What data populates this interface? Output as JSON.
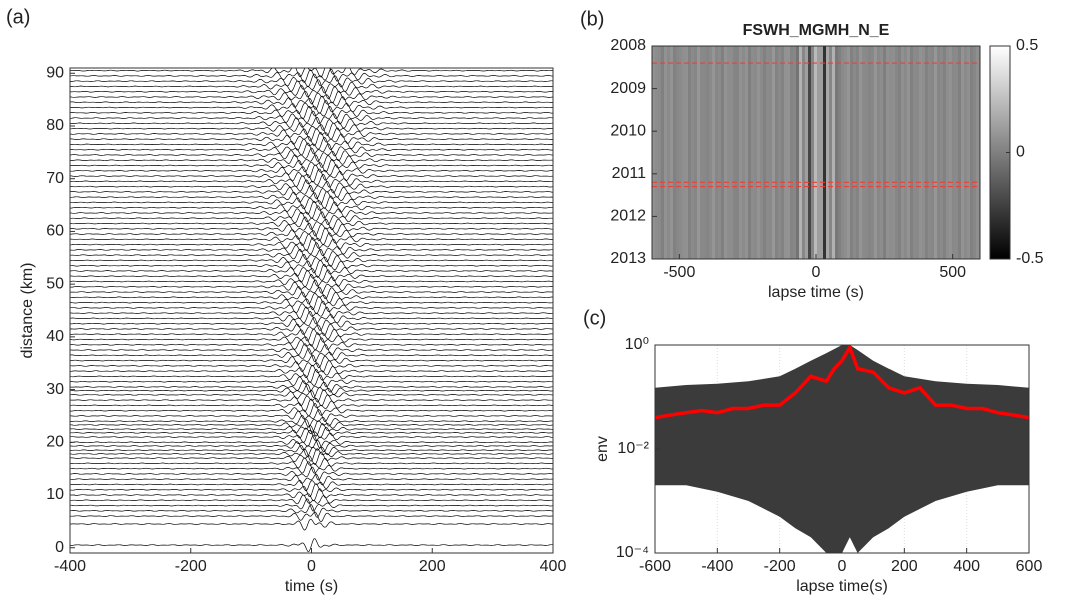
{
  "chart_data": [
    {
      "type": "wiggle",
      "panel_label": "(a)",
      "xlabel": "time (s)",
      "ylabel": "distance (km)",
      "xlim": [
        -400,
        400
      ],
      "xticks": [
        -400,
        -200,
        0,
        200,
        400
      ],
      "ylim": [
        -1,
        91
      ],
      "yticks": [
        0,
        10,
        20,
        30,
        40,
        50,
        60,
        70,
        80,
        90
      ],
      "color": "#000000",
      "distances": [
        0.5,
        4.5,
        6,
        7,
        8,
        9,
        10,
        11,
        12,
        13,
        14,
        15,
        16,
        17,
        17.8,
        18.5,
        19.3,
        20,
        21,
        21.8,
        22.5,
        23.3,
        24,
        25,
        26,
        27,
        28,
        29,
        29.8,
        30.5,
        31.5,
        32.5,
        33.5,
        34.5,
        35.5,
        36.5,
        37.5,
        38.5,
        39.5,
        40.5,
        41.5,
        42.5,
        43.5,
        44.5,
        45.5,
        46.5,
        47.5,
        48.5,
        49.5,
        50.5,
        51.5,
        52.5,
        53.5,
        54.5,
        55.5,
        56.5,
        57.5,
        58.5,
        59.5,
        60.5,
        61.5,
        62.5,
        63.5,
        64.5,
        65.5,
        66.5,
        67.5,
        68.5,
        69.5,
        70.5,
        71.5,
        72.5,
        73.5,
        74.5,
        75.5,
        76.5,
        77.5,
        78.5,
        79.5,
        80.5,
        81.5,
        82.5,
        83.5,
        84.5,
        85.5,
        86.5,
        87.5,
        88.5,
        89.5,
        90.5
      ]
    },
    {
      "type": "heatmap",
      "panel_label": "(b)",
      "title": "FSWH_MGMH_N_E",
      "xlabel": "lapse time (s)",
      "xlim": [
        -600,
        600
      ],
      "xticks": [
        -500,
        0,
        500
      ],
      "ylim": [
        2008,
        2013
      ],
      "yticks": [
        2008,
        2009,
        2010,
        2011,
        2012,
        2013
      ],
      "yreverse": true,
      "clim": [
        -0.5,
        0.5
      ],
      "cticks": [
        0.5,
        0,
        -0.5
      ],
      "hlines": [
        2008.4,
        2011.2,
        2011.3
      ],
      "hline_color": "#e8413c"
    },
    {
      "type": "envelope",
      "panel_label": "(c)",
      "xlabel": "lapse time(s)",
      "ylabel": "env",
      "xlim": [
        -600,
        600
      ],
      "xticks": [
        -600,
        -400,
        -200,
        0,
        200,
        400,
        600
      ],
      "ylim": [
        0.0001,
        1
      ],
      "yscale": "log",
      "grid": true,
      "yticks": [
        {
          "value": 0.0001,
          "label": "10⁻⁴"
        },
        {
          "value": 0.01,
          "label": "10⁻²"
        },
        {
          "value": 1,
          "label": "10⁰"
        }
      ],
      "band": {
        "color": "#3b3b3b",
        "x": [
          -600,
          -500,
          -400,
          -300,
          -200,
          -150,
          -100,
          -50,
          0,
          25,
          50,
          100,
          150,
          200,
          300,
          400,
          500,
          600
        ],
        "upper": [
          0.15,
          0.17,
          0.18,
          0.2,
          0.25,
          0.35,
          0.5,
          0.7,
          1,
          1,
          0.8,
          0.5,
          0.35,
          0.25,
          0.2,
          0.18,
          0.17,
          0.15
        ],
        "lower": [
          0.002,
          0.002,
          0.0015,
          0.001,
          0.0005,
          0.0003,
          0.0002,
          0.0001,
          0.0001,
          0.0002,
          0.0001,
          0.0002,
          0.0003,
          0.0005,
          0.001,
          0.0015,
          0.002,
          0.002
        ]
      },
      "line": {
        "color": "#ff0000",
        "x": [
          -600,
          -550,
          -500,
          -450,
          -400,
          -350,
          -300,
          -250,
          -200,
          -150,
          -100,
          -50,
          -25,
          0,
          25,
          50,
          100,
          150,
          200,
          250,
          300,
          350,
          400,
          450,
          500,
          550,
          600
        ],
        "values": [
          0.04,
          0.045,
          0.05,
          0.055,
          0.05,
          0.06,
          0.06,
          0.07,
          0.07,
          0.12,
          0.25,
          0.2,
          0.35,
          0.5,
          0.9,
          0.35,
          0.3,
          0.15,
          0.12,
          0.15,
          0.07,
          0.07,
          0.06,
          0.06,
          0.05,
          0.045,
          0.04
        ]
      }
    }
  ]
}
